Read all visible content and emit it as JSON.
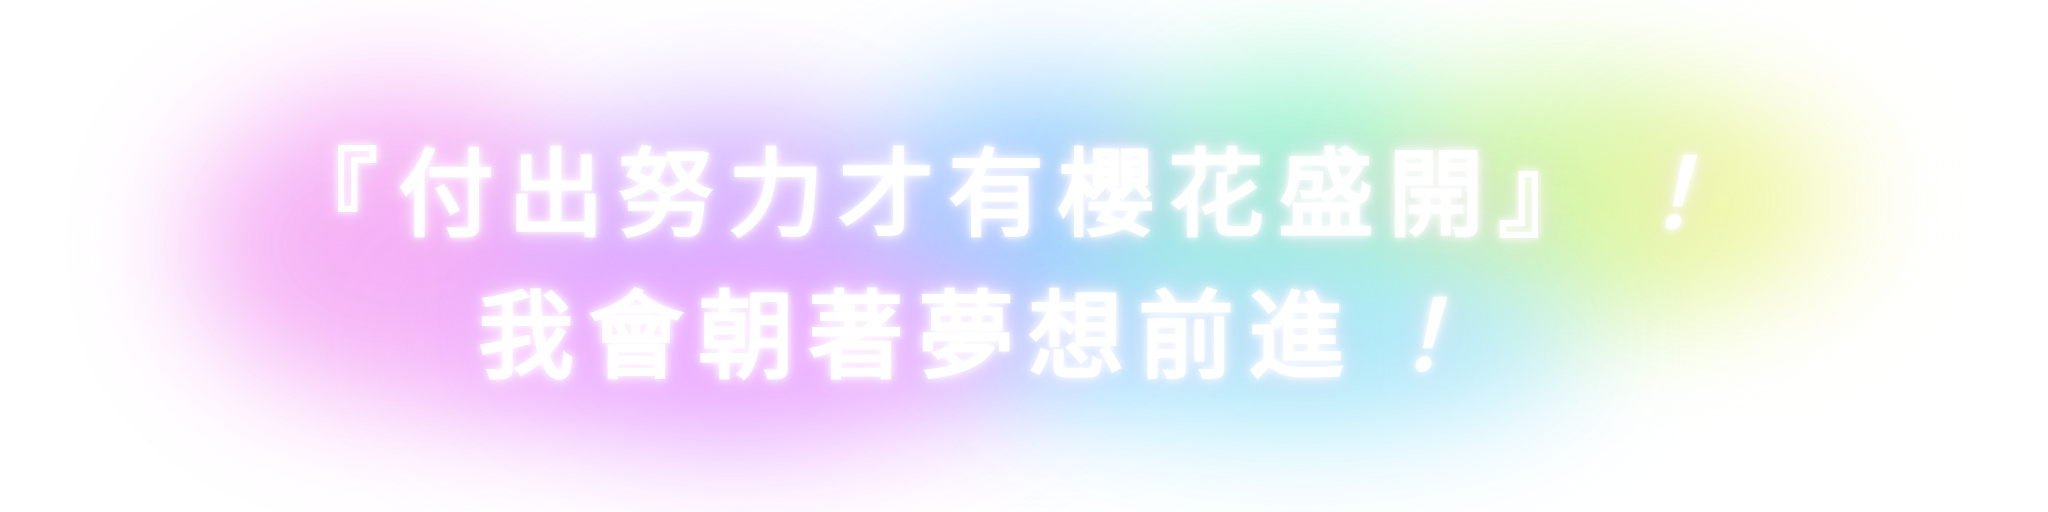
{
  "banner": {
    "line1": {
      "open_bracket": "『",
      "text": "付出努力才有櫻花盛開",
      "close_bracket": "』",
      "exclamation": "！"
    },
    "line2": {
      "text": "我會朝著夢想前進",
      "exclamation": "！"
    }
  },
  "colors": {
    "background": "#ffffff",
    "text": "#ffffff",
    "glow_pink": "#f4a6f4",
    "glow_violet": "#c9a8ff",
    "glow_blue": "#8ecbff",
    "glow_mint": "#8ff2c9",
    "glow_lime": "#c9f59a",
    "glow_yellow": "#f2f6a0"
  }
}
